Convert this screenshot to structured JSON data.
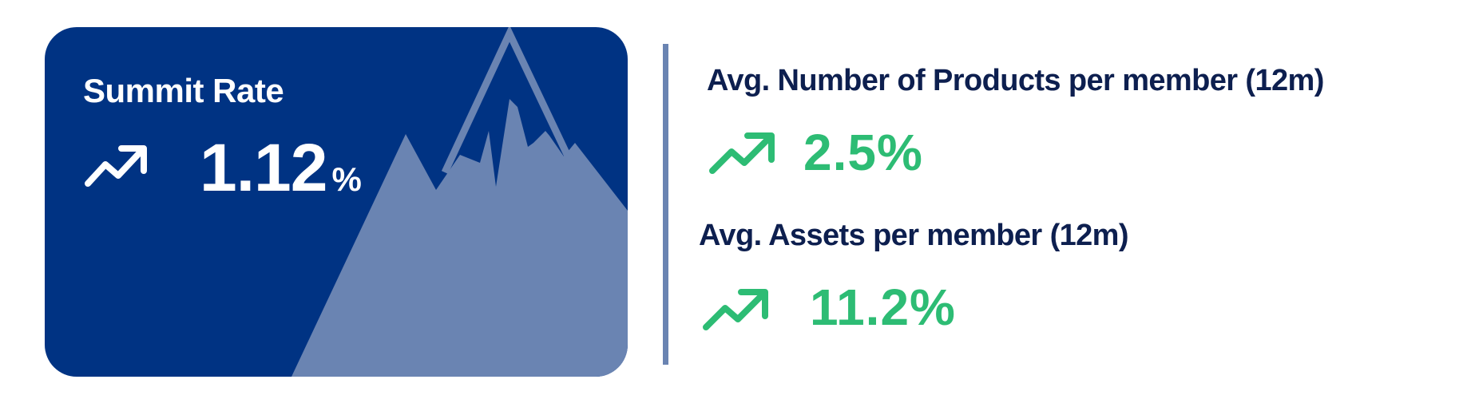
{
  "summit_card": {
    "title": "Summit Rate",
    "trend_icon": "trending-up-icon",
    "value": "1.12",
    "unit": "%",
    "background_color": "#003383",
    "mountain_color": "#6a84b2"
  },
  "metrics": [
    {
      "label": "Avg. Number of Products per member (12m)",
      "trend_icon": "trending-up-icon",
      "value": "2.5%"
    },
    {
      "label": "Avg. Assets per member (12m)",
      "trend_icon": "trending-up-icon",
      "value": "11.2%"
    }
  ],
  "colors": {
    "label_text": "#0d1f4f",
    "positive": "#2dbc74",
    "divider": "#6a84b2"
  }
}
